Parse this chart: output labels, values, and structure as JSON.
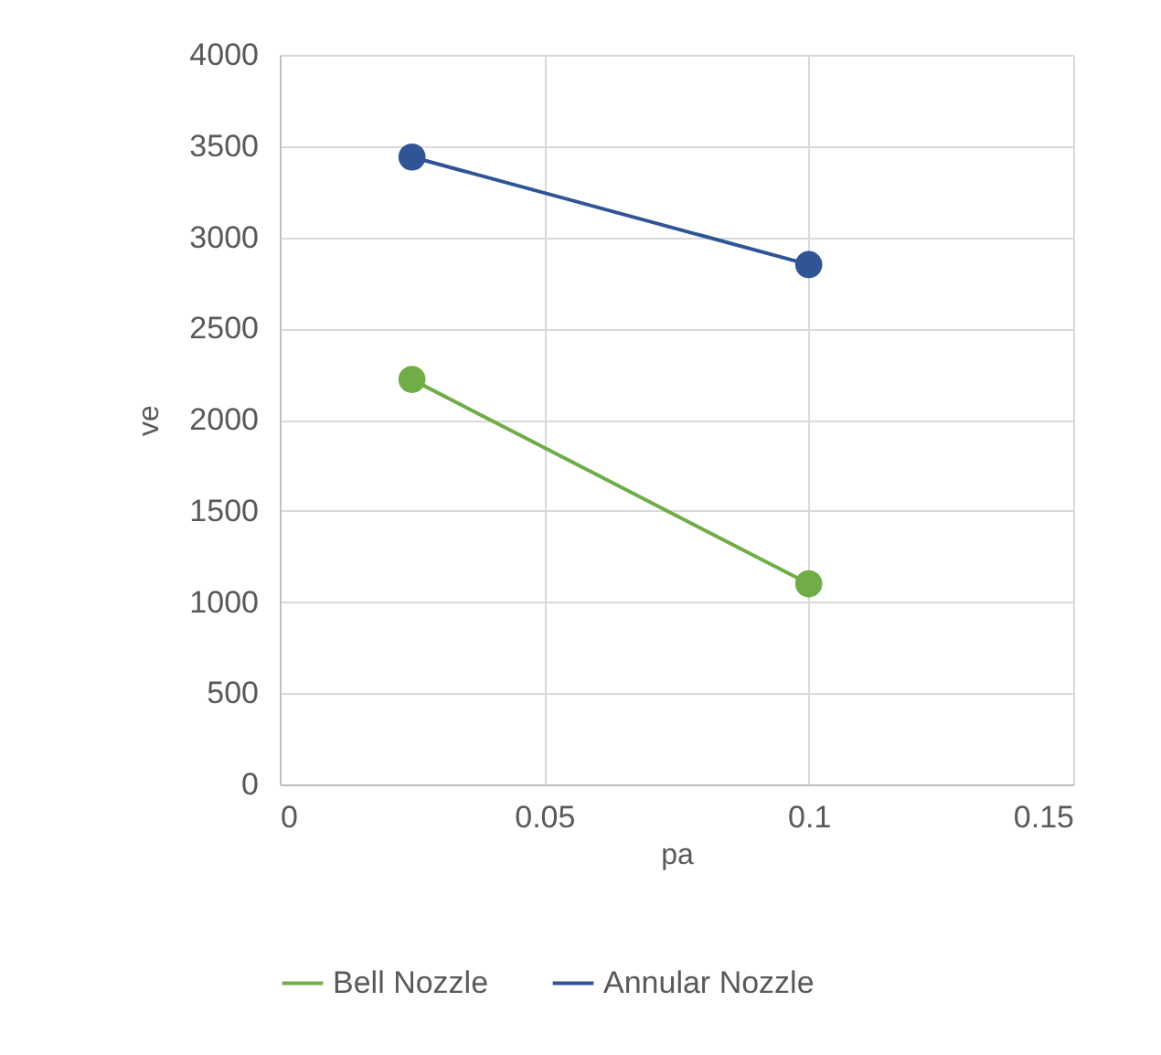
{
  "chart_data": {
    "type": "line",
    "xlabel": "pa",
    "ylabel": "ve",
    "x": [
      0.025,
      0.1
    ],
    "series": [
      {
        "name": "Bell Nozzle",
        "color": "#70ad47",
        "values": [
          2220,
          1100
        ]
      },
      {
        "name": "Annular Nozzle",
        "color": "#2f5597",
        "values": [
          3440,
          2850
        ]
      }
    ],
    "xlim": [
      0,
      0.15
    ],
    "xticks": [
      0,
      0.05,
      0.1,
      0.15
    ],
    "ylim": [
      0,
      4000
    ],
    "yticks": [
      0,
      500,
      1000,
      1500,
      2000,
      2500,
      3000,
      3500,
      4000
    ],
    "grid": true,
    "legend": "bottom",
    "marker": "circle",
    "line_style": "solid"
  }
}
